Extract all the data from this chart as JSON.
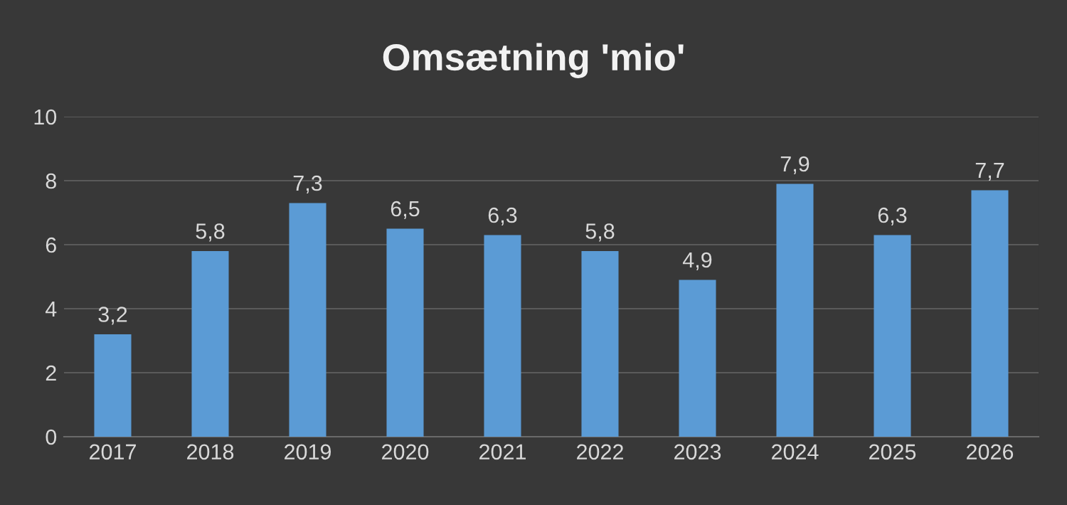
{
  "chart_data": {
    "type": "bar",
    "title": "Omsætning 'mio'",
    "categories": [
      "2017",
      "2018",
      "2019",
      "2020",
      "2021",
      "2022",
      "2023",
      "2024",
      "2025",
      "2026"
    ],
    "values": [
      3.2,
      5.8,
      7.3,
      6.5,
      6.3,
      5.8,
      4.9,
      7.9,
      6.3,
      7.7
    ],
    "value_labels": [
      "3,2",
      "5,8",
      "7,3",
      "6,5",
      "6,3",
      "5,8",
      "4,9",
      "7,9",
      "6,3",
      "7,7"
    ],
    "color": "#5b9bd5",
    "ylim": [
      0,
      10
    ],
    "yticks": [
      0,
      2,
      4,
      6,
      8,
      10
    ],
    "grid": "y",
    "legend": false
  }
}
